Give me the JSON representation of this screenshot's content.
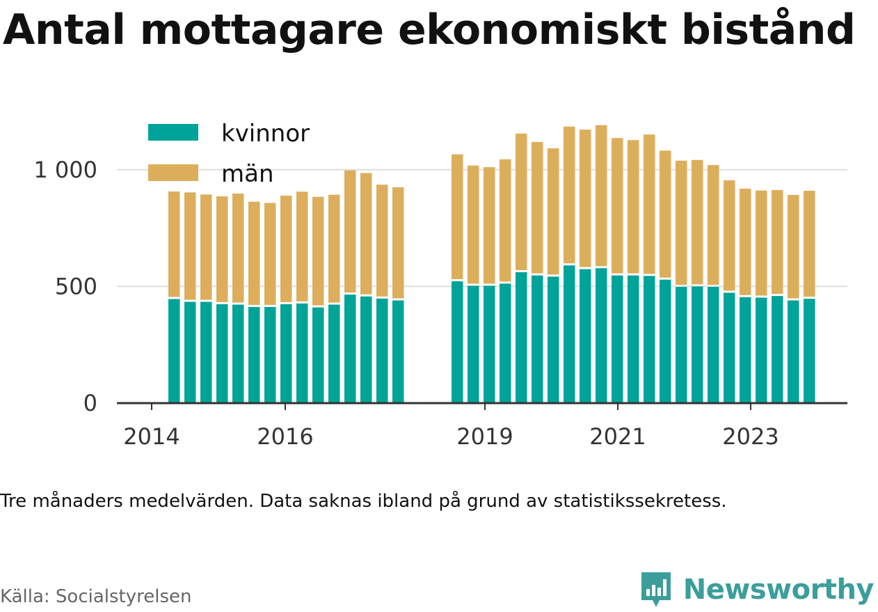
{
  "title": "Antal mottagare ekonomiskt bistånd",
  "note": "Tre månaders medelvärden. Data saknas ibland på grund av statistikssekretess.",
  "source": "Källa: Socialstyrelsen",
  "brand": "Newsworthy",
  "colors": {
    "kvinnor": "#00a398",
    "man": "#dcae5c",
    "brand": "#3b9e9b"
  },
  "chart_data": {
    "type": "bar",
    "stacked": true,
    "ylim": [
      0,
      1250
    ],
    "yticks": [
      {
        "value": 0,
        "label": "0"
      },
      {
        "value": 500,
        "label": "500"
      },
      {
        "value": 1000,
        "label": "1 000"
      }
    ],
    "xtick_labels": [
      "2014",
      "2016",
      "2019",
      "2021",
      "2023"
    ],
    "legend_position": "top-left",
    "grid": true,
    "series": [
      {
        "name": "kvinnor",
        "color": "#00a398",
        "values": [
          446,
          434,
          434,
          424,
          422,
          412,
          412,
          424,
          427,
          410,
          422,
          465,
          457,
          448,
          440,
          522,
          503,
          503,
          512,
          561,
          547,
          542,
          590,
          574,
          578,
          547,
          547,
          545,
          529,
          498,
          500,
          498,
          473,
          454,
          452,
          459,
          440,
          447
        ]
      },
      {
        "name": "män",
        "color": "#dcae5c",
        "values": [
          461,
          469,
          460,
          462,
          476,
          451,
          446,
          465,
          479,
          474,
          471,
          532,
          529,
          488,
          485,
          544,
          515,
          508,
          533,
          594,
          572,
          550,
          595,
          598,
          613,
          589,
          580,
          606,
          553,
          541,
          542,
          522,
          482,
          465,
          459,
          454,
          452,
          463
        ]
      }
    ]
  }
}
